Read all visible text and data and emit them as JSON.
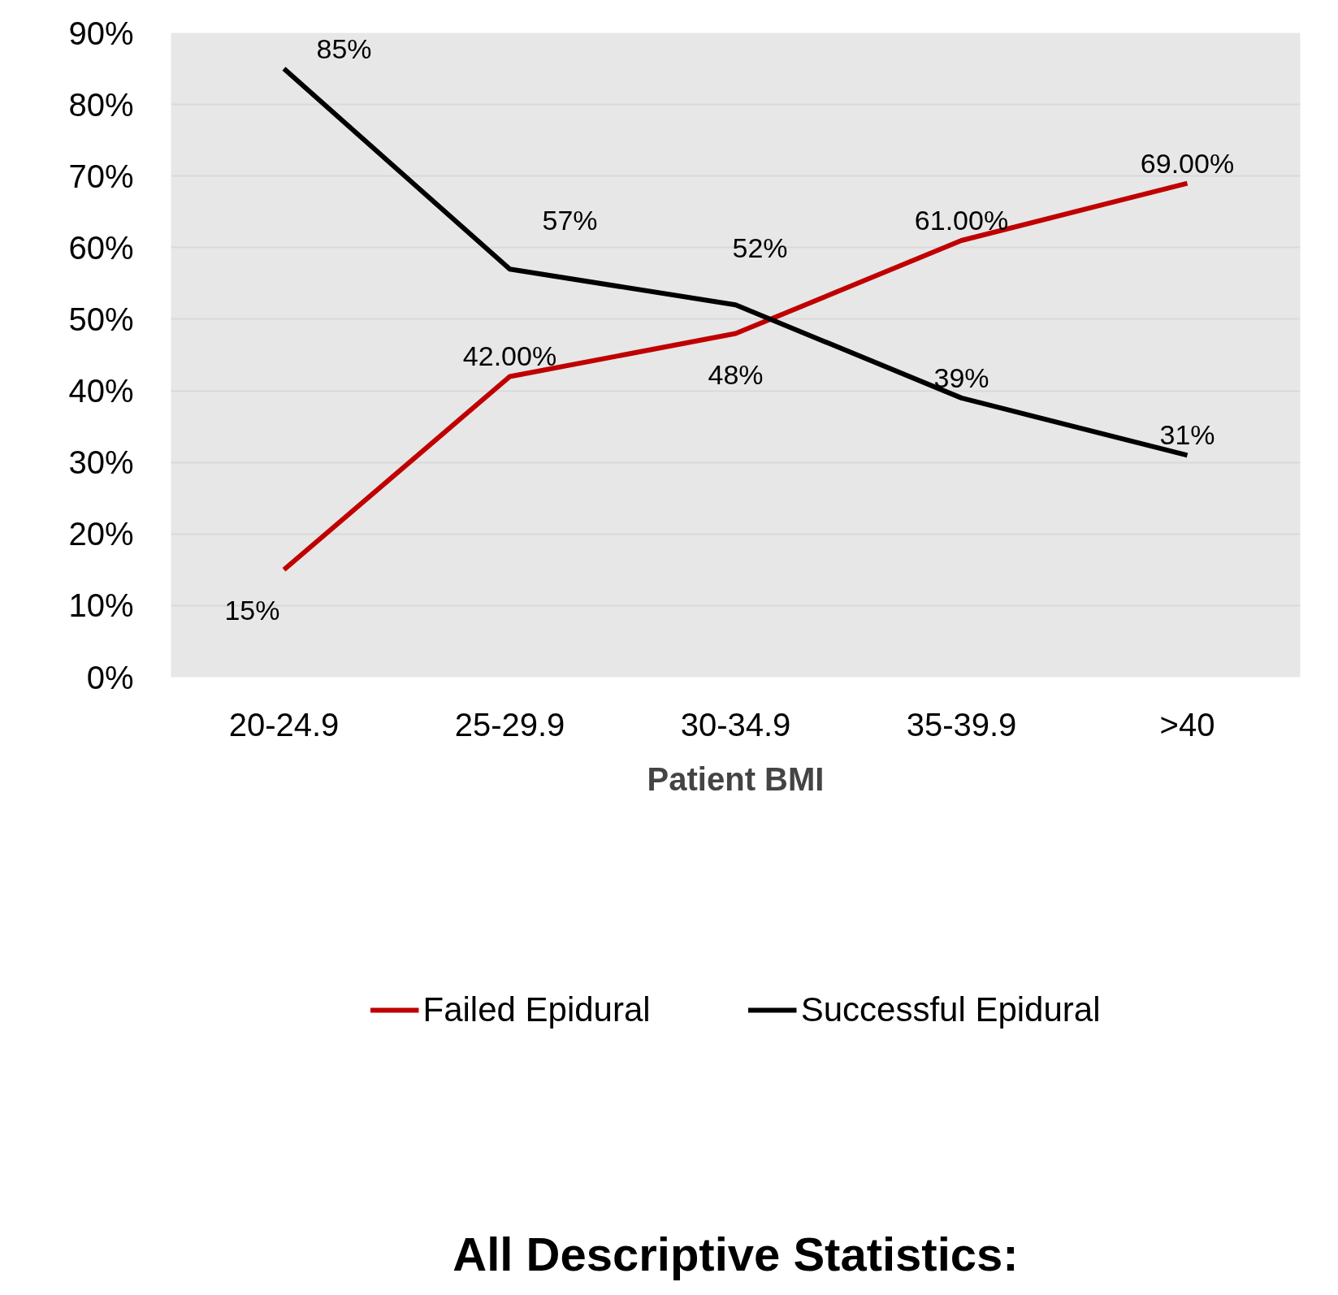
{
  "chart_data": {
    "type": "line",
    "xlabel": "Patient BMI",
    "categories": [
      "20-24.9",
      "25-29.9",
      "30-34.9",
      "35-39.9",
      ">40"
    ],
    "series": [
      {
        "name": "Failed Epidural",
        "color": "#c00000",
        "values": [
          15,
          42,
          48,
          61,
          69
        ],
        "value_labels": [
          "15%",
          "42.00%",
          "48%",
          "61.00%",
          "69.00%"
        ]
      },
      {
        "name": "Successful Epidural",
        "color": "#000000",
        "values": [
          85,
          57,
          52,
          39,
          31
        ],
        "value_labels": [
          "85%",
          "57%",
          "52%",
          "39%",
          "31%"
        ]
      }
    ],
    "ylim": [
      0,
      90
    ],
    "yticks": [
      {
        "value": 0,
        "label": "0%"
      },
      {
        "value": 10,
        "label": "10%"
      },
      {
        "value": 20,
        "label": "20%"
      },
      {
        "value": 30,
        "label": "30%"
      },
      {
        "value": 40,
        "label": "40%"
      },
      {
        "value": 50,
        "label": "50%"
      },
      {
        "value": 60,
        "label": "60%"
      },
      {
        "value": 70,
        "label": "70%"
      },
      {
        "value": 80,
        "label": "80%"
      },
      {
        "value": 90,
        "label": "90%"
      }
    ],
    "grid": "y",
    "legend": "bottom",
    "marker": "none",
    "line_style": "solid",
    "annotations": [
      "All Descriptive Statistics:"
    ]
  }
}
